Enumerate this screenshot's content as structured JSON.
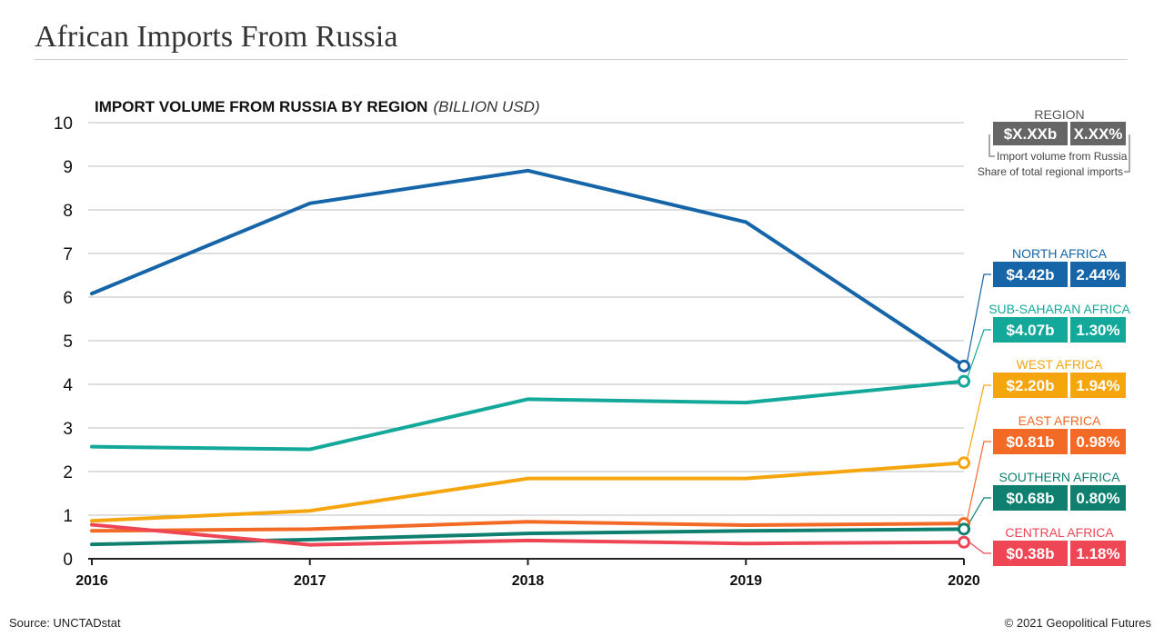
{
  "page": {
    "title": "African Imports From Russia",
    "source": "Source: UNCTADstat",
    "copyright": "© 2021 Geopolitical Futures"
  },
  "chart_data": {
    "type": "line",
    "title": "IMPORT VOLUME FROM RUSSIA BY REGION",
    "subtitle": "(BILLION USD)",
    "x": [
      "2016",
      "2017",
      "2018",
      "2019",
      "2020"
    ],
    "ylim": [
      0,
      10
    ],
    "yticks": [
      0,
      1,
      2,
      3,
      4,
      5,
      6,
      7,
      8,
      9,
      10
    ],
    "grid": true,
    "series": [
      {
        "name": "NORTH AFRICA",
        "color": "#1565a8",
        "values": [
          6.08,
          8.15,
          8.9,
          7.72,
          4.42
        ],
        "value_label": "$4.42b",
        "share_label": "2.44%"
      },
      {
        "name": "SUB-SAHARAN AFRICA",
        "color": "#14a89a",
        "values": [
          2.57,
          2.51,
          3.66,
          3.58,
          4.07
        ],
        "value_label": "$4.07b",
        "share_label": "1.30%"
      },
      {
        "name": "WEST AFRICA",
        "color": "#f5a60f",
        "values": [
          0.87,
          1.1,
          1.84,
          1.84,
          2.2
        ],
        "value_label": "$2.20b",
        "share_label": "1.94%"
      },
      {
        "name": "EAST AFRICA",
        "color": "#f26a25",
        "values": [
          0.64,
          0.68,
          0.85,
          0.77,
          0.81
        ],
        "value_label": "$0.81b",
        "share_label": "0.98%"
      },
      {
        "name": "SOUTHERN AFRICA",
        "color": "#0f8070",
        "values": [
          0.33,
          0.44,
          0.58,
          0.64,
          0.68
        ],
        "value_label": "$0.68b",
        "share_label": "0.80%"
      },
      {
        "name": "CENTRAL AFRICA",
        "color": "#ee4655",
        "values": [
          0.78,
          0.32,
          0.42,
          0.35,
          0.38
        ],
        "value_label": "$0.38b",
        "share_label": "1.18%"
      }
    ],
    "key": {
      "title": "REGION",
      "value_label": "$X.XXb",
      "share_label": "X.XX%",
      "value_note": "Import volume from Russia",
      "share_note": "Share of total regional imports",
      "color": "#666666"
    }
  }
}
